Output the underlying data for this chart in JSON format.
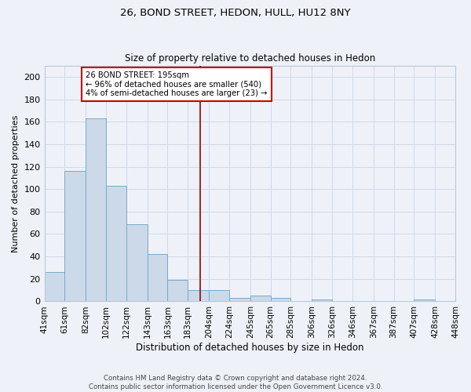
{
  "title1": "26, BOND STREET, HEDON, HULL, HU12 8NY",
  "title2": "Size of property relative to detached houses in Hedon",
  "xlabel": "Distribution of detached houses by size in Hedon",
  "ylabel": "Number of detached properties",
  "bar_edges": [
    41,
    61,
    82,
    102,
    122,
    143,
    163,
    183,
    204,
    224,
    245,
    265,
    285,
    306,
    326,
    346,
    367,
    387,
    407,
    428,
    448
  ],
  "bar_heights": [
    26,
    116,
    163,
    103,
    69,
    42,
    19,
    10,
    10,
    3,
    5,
    3,
    0,
    2,
    0,
    0,
    0,
    0,
    2,
    0
  ],
  "bar_color": "#ccd9e8",
  "bar_edgecolor": "#7aaac8",
  "vline_x": 195,
  "vline_color": "#990000",
  "annotation_text": "26 BOND STREET: 195sqm\n← 96% of detached houses are smaller (540)\n4% of semi-detached houses are larger (23) →",
  "annotation_box_facecolor": "#ffffff",
  "annotation_box_edgecolor": "#cc0000",
  "ylim": [
    0,
    210
  ],
  "yticks": [
    0,
    20,
    40,
    60,
    80,
    100,
    120,
    140,
    160,
    180,
    200
  ],
  "grid_color": "#d0d8e8",
  "bg_color": "#eef2f8",
  "footer_text": "Contains HM Land Registry data © Crown copyright and database right 2024.\nContains public sector information licensed under the Open Government Licence v3.0.",
  "tick_labels": [
    "41sqm",
    "61sqm",
    "82sqm",
    "102sqm",
    "122sqm",
    "143sqm",
    "163sqm",
    "183sqm",
    "204sqm",
    "224sqm",
    "245sqm",
    "265sqm",
    "285sqm",
    "306sqm",
    "326sqm",
    "346sqm",
    "367sqm",
    "387sqm",
    "407sqm",
    "428sqm",
    "448sqm"
  ]
}
